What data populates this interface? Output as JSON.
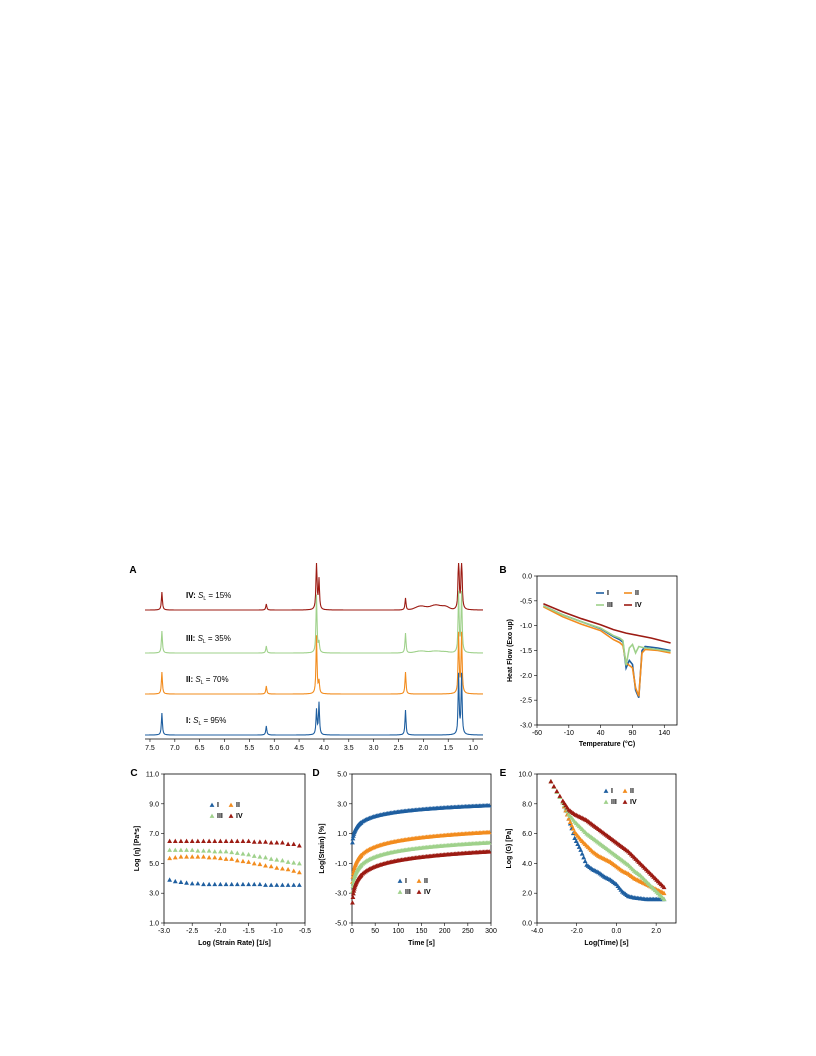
{
  "colors": {
    "I": "#1f5fa0",
    "II": "#f28c1e",
    "III": "#9fd18b",
    "IV": "#9c1b13"
  },
  "legend": [
    "I",
    "II",
    "III",
    "IV"
  ],
  "chart_data": [
    {
      "panel": "A",
      "type": "line",
      "x_ticks": [
        "7.5",
        "7.0",
        "6.5",
        "6.0",
        "5.5",
        "5.0",
        "4.5",
        "4.0",
        "3.5",
        "3.0",
        "2.5",
        "2.0",
        "1.5",
        "1.0"
      ],
      "xlim": [
        7.6,
        0.8
      ],
      "peaks_ppm": [
        7.26,
        5.16,
        4.15,
        4.1,
        2.36,
        1.29,
        1.23
      ],
      "labels": [
        {
          "series": "IV",
          "name": "IV",
          "sl": "15%"
        },
        {
          "series": "III",
          "name": "III",
          "sl": "35%"
        },
        {
          "series": "II",
          "name": "II",
          "sl": "70%"
        },
        {
          "series": "I",
          "name": "I",
          "sl": "95%"
        }
      ]
    },
    {
      "panel": "B",
      "type": "line",
      "xlabel": "Temperature (°C)",
      "ylabel": "Heat Flow (Exo up)",
      "xlim": [
        -60,
        160
      ],
      "ylim": [
        -3.0,
        0.0
      ],
      "x_ticks": [
        "-60",
        "-10",
        "40",
        "90",
        "140"
      ],
      "y_ticks": [
        "0.0",
        "-0.5",
        "-1.0",
        "-1.5",
        "-2.0",
        "-2.5",
        "-3.0"
      ],
      "series": [
        {
          "name": "I",
          "x": [
            -50,
            -20,
            10,
            40,
            60,
            70,
            75,
            80,
            85,
            90,
            95,
            100,
            105,
            110,
            130,
            150
          ],
          "y": [
            -0.6,
            -0.78,
            -0.92,
            -1.06,
            -1.22,
            -1.28,
            -1.33,
            -1.85,
            -1.7,
            -1.78,
            -2.3,
            -2.45,
            -1.5,
            -1.42,
            -1.45,
            -1.5
          ]
        },
        {
          "name": "II",
          "x": [
            -50,
            -20,
            10,
            40,
            60,
            70,
            75,
            80,
            85,
            90,
            95,
            100,
            105,
            110,
            130,
            150
          ],
          "y": [
            -0.62,
            -0.82,
            -0.97,
            -1.1,
            -1.28,
            -1.34,
            -1.4,
            -1.75,
            -1.8,
            -1.85,
            -2.25,
            -2.42,
            -1.55,
            -1.48,
            -1.5,
            -1.55
          ]
        },
        {
          "name": "III",
          "x": [
            -50,
            -20,
            10,
            40,
            60,
            70,
            75,
            80,
            85,
            90,
            95,
            100,
            110,
            130,
            150
          ],
          "y": [
            -0.6,
            -0.78,
            -0.92,
            -1.05,
            -1.2,
            -1.25,
            -1.3,
            -1.8,
            -1.45,
            -1.38,
            -1.55,
            -1.42,
            -1.45,
            -1.48,
            -1.52
          ]
        },
        {
          "name": "IV",
          "x": [
            -50,
            -20,
            10,
            40,
            60,
            80,
            100,
            120,
            150
          ],
          "y": [
            -0.56,
            -0.72,
            -0.86,
            -0.98,
            -1.08,
            -1.15,
            -1.2,
            -1.25,
            -1.35
          ]
        }
      ]
    },
    {
      "panel": "C",
      "type": "scatter",
      "xlabel": "Log (Strain Rate) [1/s]",
      "ylabel": "Log (η) [Pa*s]",
      "xlim": [
        -3.0,
        -0.5
      ],
      "ylim": [
        1.0,
        11.0
      ],
      "x_ticks": [
        "-3.0",
        "-2.5",
        "-2.0",
        "-1.5",
        "-1.0",
        "-0.5"
      ],
      "y_ticks": [
        "11.0",
        "9.0",
        "7.0",
        "5.0",
        "3.0",
        "1.0"
      ],
      "x": [
        -2.9,
        -2.8,
        -2.7,
        -2.6,
        -2.5,
        -2.4,
        -2.3,
        -2.2,
        -2.1,
        -2.0,
        -1.9,
        -1.8,
        -1.7,
        -1.6,
        -1.5,
        -1.4,
        -1.3,
        -1.2,
        -1.1,
        -1.0,
        -0.9,
        -0.8,
        -0.7,
        -0.6
      ],
      "series": [
        {
          "name": "I",
          "values": [
            3.9,
            3.8,
            3.75,
            3.7,
            3.65,
            3.65,
            3.6,
            3.6,
            3.6,
            3.6,
            3.6,
            3.6,
            3.6,
            3.6,
            3.6,
            3.6,
            3.6,
            3.55,
            3.55,
            3.55,
            3.55,
            3.55,
            3.55,
            3.55
          ]
        },
        {
          "name": "II",
          "values": [
            5.35,
            5.4,
            5.45,
            5.45,
            5.45,
            5.45,
            5.45,
            5.4,
            5.4,
            5.35,
            5.3,
            5.3,
            5.2,
            5.15,
            5.1,
            5.0,
            4.95,
            4.85,
            4.8,
            4.7,
            4.65,
            4.6,
            4.5,
            4.4
          ]
        },
        {
          "name": "III",
          "values": [
            5.9,
            5.9,
            5.9,
            5.9,
            5.9,
            5.85,
            5.85,
            5.85,
            5.8,
            5.8,
            5.8,
            5.75,
            5.7,
            5.65,
            5.6,
            5.5,
            5.45,
            5.4,
            5.3,
            5.25,
            5.2,
            5.1,
            5.05,
            5.0
          ]
        },
        {
          "name": "IV",
          "values": [
            6.5,
            6.5,
            6.5,
            6.5,
            6.5,
            6.5,
            6.5,
            6.5,
            6.5,
            6.5,
            6.5,
            6.5,
            6.5,
            6.5,
            6.5,
            6.45,
            6.45,
            6.45,
            6.4,
            6.4,
            6.4,
            6.3,
            6.3,
            6.2
          ]
        }
      ]
    },
    {
      "panel": "D",
      "type": "scatter",
      "xlabel": "Time [s]",
      "ylabel": "Log(Strain) [%]",
      "xlim": [
        0,
        300
      ],
      "ylim": [
        -5.0,
        5.0
      ],
      "x_ticks": [
        "0",
        "50",
        "100",
        "150",
        "200",
        "250",
        "300"
      ],
      "y_ticks": [
        "5.0",
        "3.0",
        "1.0",
        "-1.0",
        "-3.0",
        "-5.0"
      ],
      "series": [
        {
          "name": "I",
          "a": -0.3,
          "b": 3.2,
          "y_end": 2.9
        },
        {
          "name": "II",
          "a": -3.2,
          "b": 4.3,
          "y_end": 1.1
        },
        {
          "name": "III",
          "a": -3.8,
          "b": 4.4,
          "y_end": 0.4
        },
        {
          "name": "IV",
          "a": -4.6,
          "b": 4.6,
          "y_end": -0.2
        }
      ]
    },
    {
      "panel": "E",
      "type": "scatter",
      "xlabel": "Log(Time)  [s]",
      "ylabel": "Log (G) [Pa]",
      "xlim": [
        -4.0,
        3.0
      ],
      "ylim": [
        0.0,
        10.0
      ],
      "x_ticks": [
        "-4.0",
        "-2.0",
        "0.0",
        "2.0"
      ],
      "y_ticks": [
        "10.0",
        "8.0",
        "6.0",
        "4.0",
        "2.0",
        "0.0"
      ],
      "series": [
        {
          "name": "I",
          "x": [
            -3.3,
            -2.7,
            -2.4,
            -2.1,
            -1.8,
            -1.5,
            -1.2,
            -0.9,
            -0.6,
            -0.3,
            0.0,
            0.3,
            0.6,
            0.9,
            1.2,
            1.5,
            1.8,
            2.1,
            2.4
          ],
          "y": [
            9.5,
            8.1,
            7.0,
            5.7,
            4.9,
            3.9,
            3.6,
            3.4,
            3.1,
            2.9,
            2.6,
            2.1,
            1.8,
            1.7,
            1.65,
            1.6,
            1.6,
            1.6,
            1.6
          ]
        },
        {
          "name": "II",
          "x": [
            -3.3,
            -2.7,
            -2.4,
            -2.1,
            -1.8,
            -1.5,
            -1.2,
            -0.9,
            -0.6,
            -0.3,
            0.0,
            0.3,
            0.6,
            0.9,
            1.2,
            1.5,
            1.8,
            2.1,
            2.4
          ],
          "y": [
            9.5,
            8.1,
            7.0,
            6.1,
            5.6,
            5.2,
            4.8,
            4.5,
            4.3,
            4.1,
            3.8,
            3.5,
            3.3,
            3.0,
            2.8,
            2.6,
            2.4,
            2.2,
            2.0
          ]
        },
        {
          "name": "III",
          "x": [
            -3.3,
            -2.7,
            -2.4,
            -2.1,
            -1.8,
            -1.5,
            -1.2,
            -0.9,
            -0.6,
            -0.3,
            0.0,
            0.3,
            0.6,
            0.9,
            1.2,
            1.5,
            1.8,
            2.1,
            2.4
          ],
          "y": [
            9.5,
            8.1,
            7.3,
            6.8,
            6.4,
            6.0,
            5.7,
            5.4,
            5.1,
            4.8,
            4.5,
            4.2,
            3.9,
            3.5,
            3.2,
            2.8,
            2.4,
            2.0,
            1.6
          ]
        },
        {
          "name": "IV",
          "x": [
            -3.3,
            -2.7,
            -2.4,
            -2.1,
            -1.8,
            -1.5,
            -1.2,
            -0.9,
            -0.6,
            -0.3,
            0.0,
            0.3,
            0.6,
            0.9,
            1.2,
            1.5,
            1.8,
            2.1,
            2.4
          ],
          "y": [
            9.5,
            8.2,
            7.6,
            7.3,
            7.1,
            6.9,
            6.6,
            6.3,
            6.0,
            5.7,
            5.4,
            5.1,
            4.8,
            4.4,
            4.0,
            3.6,
            3.2,
            2.8,
            2.4
          ]
        }
      ]
    }
  ]
}
